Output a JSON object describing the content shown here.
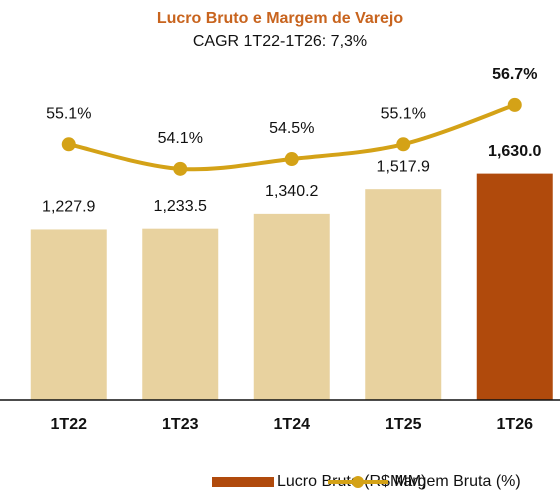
{
  "chart_data": {
    "type": "bar",
    "title": "Lucro Bruto e Margem de Varejo",
    "subtitle": "CAGR 1T22-1T26: 7,3%",
    "categories": [
      "1T22",
      "1T23",
      "1T24",
      "1T25",
      "1T26"
    ],
    "series": [
      {
        "name": "Lucro Bruto (R$ MM)",
        "type": "bar",
        "color": "#b04a0c",
        "colors": [
          "#e8d29f",
          "#e8d29f",
          "#e8d29f",
          "#e8d29f",
          "#b04a0c"
        ],
        "values": [
          1227.9,
          1233.5,
          1340.2,
          1517.9,
          1630.0
        ],
        "value_labels": [
          "1,227.9",
          "1,233.5",
          "1,340.2",
          "1,517.9",
          "1,630.0"
        ]
      },
      {
        "name": "Margem Bruta (%)",
        "type": "line",
        "axis": "y2",
        "color": "#d4a217",
        "values": [
          55.1,
          54.1,
          54.5,
          55.1,
          56.7
        ],
        "value_labels": [
          "55.1%",
          "54.1%",
          "54.5%",
          "55.1%",
          "56.7%"
        ]
      }
    ],
    "ylim": [
      0,
      2160
    ],
    "y2lim": [
      44.7,
      56.9
    ],
    "legend": "bottom"
  }
}
